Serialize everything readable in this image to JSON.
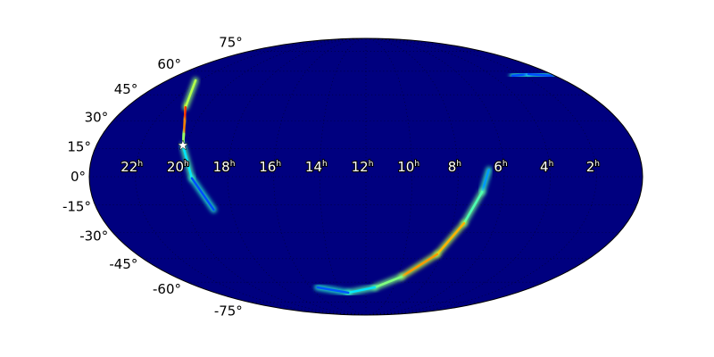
{
  "chart_data": {
    "type": "heatmap",
    "projection": "mollweide",
    "title": "",
    "colormap": "jet",
    "background_color": "#00007f",
    "grid": true,
    "ra_tick_labels": [
      {
        "ra": 22,
        "label": "22",
        "unit": "h"
      },
      {
        "ra": 20,
        "label": "20",
        "unit": "h"
      },
      {
        "ra": 18,
        "label": "18",
        "unit": "h"
      },
      {
        "ra": 16,
        "label": "16",
        "unit": "h"
      },
      {
        "ra": 14,
        "label": "14",
        "unit": "h"
      },
      {
        "ra": 12,
        "label": "12",
        "unit": "h"
      },
      {
        "ra": 10,
        "label": "10",
        "unit": "h"
      },
      {
        "ra": 8,
        "label": "8",
        "unit": "h"
      },
      {
        "ra": 6,
        "label": "6",
        "unit": "h"
      },
      {
        "ra": 4,
        "label": "4",
        "unit": "h"
      },
      {
        "ra": 2,
        "label": "2",
        "unit": "h"
      }
    ],
    "dec_tick_labels": [
      {
        "dec": 75,
        "label": "75°"
      },
      {
        "dec": 60,
        "label": "60°"
      },
      {
        "dec": 45,
        "label": "45°"
      },
      {
        "dec": 30,
        "label": "30°"
      },
      {
        "dec": 15,
        "label": "15°"
      },
      {
        "dec": 0,
        "label": "0°"
      },
      {
        "dec": -15,
        "label": "-15°"
      },
      {
        "dec": -30,
        "label": "-30°"
      },
      {
        "dec": -45,
        "label": "-45°"
      },
      {
        "dec": -60,
        "label": "-60°"
      },
      {
        "dec": -75,
        "label": "-75°"
      }
    ],
    "probability_arcs": [
      {
        "points": [
          [
            22.3,
            54,
            0.35
          ],
          [
            21.05,
            37.7,
            0.75
          ],
          [
            20.6,
            30,
            0.9
          ],
          [
            20.3,
            22.8,
            0.6
          ],
          [
            20.15,
            16.6,
            0.45
          ],
          [
            19.55,
            -0.8,
            0.25
          ],
          [
            18.8,
            -17.5,
            0.15
          ]
        ]
      },
      {
        "points": [
          [
            6.66,
            3.7,
            0.2
          ],
          [
            6.93,
            -8,
            0.35
          ],
          [
            7.48,
            -24.8,
            0.55
          ],
          [
            8.27,
            -42.4,
            0.85
          ],
          [
            9.76,
            -56.3,
            0.6
          ],
          [
            11.35,
            -63.6,
            0.4
          ],
          [
            13.4,
            -67.5,
            0.3
          ],
          [
            15.5,
            -63.6,
            0.12
          ]
        ]
      },
      {
        "points": [
          [
            2.7,
            57,
            0.15
          ],
          [
            1.5,
            58,
            0.25
          ],
          [
            0.2,
            57,
            0.15
          ]
        ]
      }
    ],
    "marker": {
      "symbol": "star",
      "ra": 20.15,
      "dec": 16.6,
      "color": "#ffffff"
    }
  }
}
